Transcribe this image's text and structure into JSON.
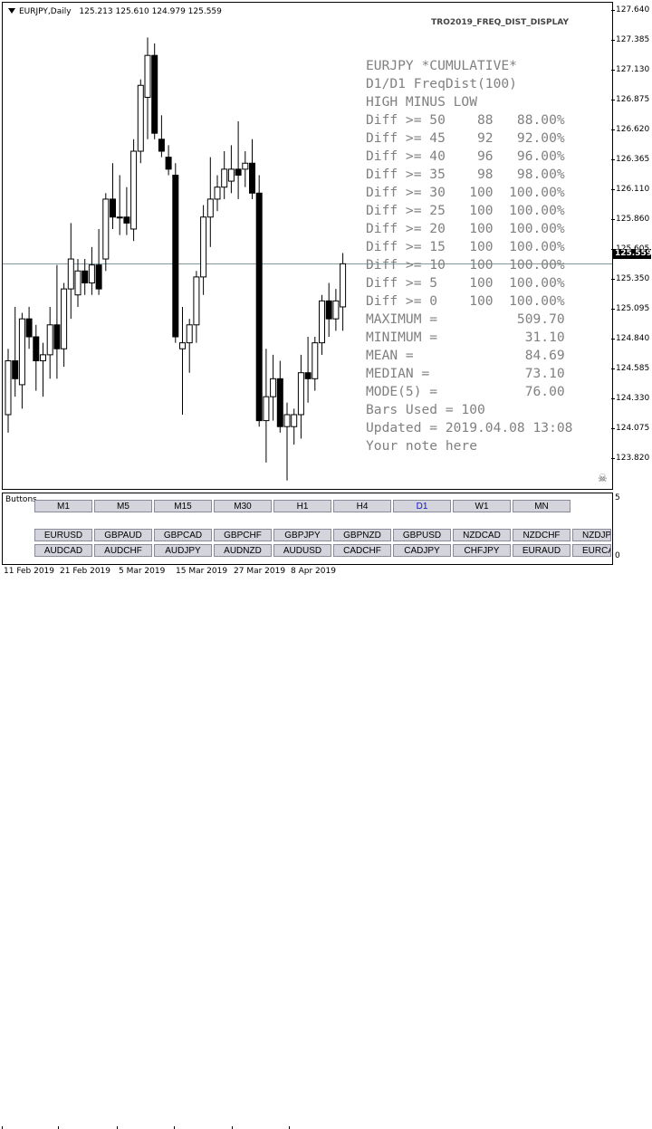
{
  "header": {
    "symbol": "EURJPY,Daily",
    "ohlc": "125.213 125.610 124.979 125.559",
    "indicator": "TRO2019_FREQ_DIST_DISPLAY"
  },
  "price_axis": {
    "ticks": [
      "127.640",
      "127.385",
      "127.130",
      "126.875",
      "126.620",
      "126.365",
      "126.110",
      "125.860",
      "125.605",
      "125.350",
      "125.095",
      "124.840",
      "124.585",
      "124.330",
      "124.075",
      "123.820"
    ],
    "current": "125.559"
  },
  "stats": {
    "lines": [
      "EURJPY *CUMULATIVE*",
      "D1/D1 FreqDist(100)",
      "HIGH MINUS LOW",
      "Diff >= 50    88   88.00%",
      "Diff >= 45    92   92.00%",
      "Diff >= 40    96   96.00%",
      "Diff >= 35    98   98.00%",
      "Diff >= 30   100  100.00%",
      "Diff >= 25   100  100.00%",
      "Diff >= 20   100  100.00%",
      "Diff >= 15   100  100.00%",
      "Diff >= 10   100  100.00%",
      "Diff >= 5    100  100.00%",
      "Diff >= 0    100  100.00%",
      "MAXIMUM =          509.70",
      "MINIMUM =           31.10",
      "MEAN =              84.69",
      "MEDIAN =            73.10",
      "MODE(5) =           76.00",
      "Bars Used = 100",
      "Updated = 2019.04.08 13:08",
      "Your note here"
    ]
  },
  "sub_window": {
    "label": "Buttons",
    "tick_top": "5",
    "tick_bottom": "0",
    "timeframes": [
      "M1",
      "M5",
      "M15",
      "M30",
      "H1",
      "H4",
      "D1",
      "W1",
      "MN"
    ],
    "active_timeframe": "D1",
    "pairs_row1": [
      "EURUSD",
      "GBPAUD",
      "GBPCAD",
      "GBPCHF",
      "GBPJPY",
      "GBPNZD",
      "GBPUSD",
      "NZDCAD",
      "NZDCHF",
      "NZDJPY"
    ],
    "pairs_row2": [
      "AUDCAD",
      "AUDCHF",
      "AUDJPY",
      "AUDNZD",
      "AUDUSD",
      "CADCHF",
      "CADJPY",
      "CHFJPY",
      "EURAUD",
      "EURCAD"
    ]
  },
  "time_axis": {
    "ticks": [
      "11 Feb 2019",
      "21 Feb 2019",
      "5 Mar 2019",
      "15 Mar 2019",
      "27 Mar 2019",
      "8 Apr 2019"
    ]
  },
  "colors": {
    "bull": "#ffffff",
    "bear": "#000000",
    "stats_text": "#808080",
    "active_button_text": "#1010d0"
  },
  "chart_data": {
    "type": "candlestick",
    "ylim": [
      123.68,
      127.74
    ],
    "candles": [
      {
        "o": 124.3,
        "h": 124.85,
        "l": 124.15,
        "c": 124.75
      },
      {
        "o": 124.75,
        "h": 125.2,
        "l": 124.45,
        "c": 124.6
      },
      {
        "o": 124.55,
        "h": 125.15,
        "l": 124.35,
        "c": 125.1
      },
      {
        "o": 125.1,
        "h": 125.2,
        "l": 124.85,
        "c": 124.95
      },
      {
        "o": 124.95,
        "h": 125.05,
        "l": 124.5,
        "c": 124.75
      },
      {
        "o": 124.75,
        "h": 124.9,
        "l": 124.45,
        "c": 124.8
      },
      {
        "o": 124.8,
        "h": 125.2,
        "l": 124.6,
        "c": 125.05
      },
      {
        "o": 125.05,
        "h": 125.55,
        "l": 124.6,
        "c": 124.85
      },
      {
        "o": 124.85,
        "h": 125.4,
        "l": 124.7,
        "c": 125.35
      },
      {
        "o": 125.35,
        "h": 125.9,
        "l": 125.1,
        "c": 125.6
      },
      {
        "o": 125.3,
        "h": 125.6,
        "l": 125.2,
        "c": 125.5
      },
      {
        "o": 125.5,
        "h": 125.6,
        "l": 125.3,
        "c": 125.4
      },
      {
        "o": 125.4,
        "h": 125.7,
        "l": 125.3,
        "c": 125.55
      },
      {
        "o": 125.55,
        "h": 125.85,
        "l": 125.3,
        "c": 125.35
      },
      {
        "o": 125.6,
        "h": 126.15,
        "l": 125.5,
        "c": 126.1
      },
      {
        "o": 126.1,
        "h": 126.4,
        "l": 125.85,
        "c": 125.95
      },
      {
        "o": 125.95,
        "h": 126.3,
        "l": 125.8,
        "c": 125.95
      },
      {
        "o": 125.95,
        "h": 126.2,
        "l": 125.8,
        "c": 125.9
      },
      {
        "o": 125.85,
        "h": 126.6,
        "l": 125.75,
        "c": 126.5
      },
      {
        "o": 126.5,
        "h": 127.1,
        "l": 126.4,
        "c": 127.05
      },
      {
        "o": 126.95,
        "h": 127.45,
        "l": 126.6,
        "c": 127.3
      },
      {
        "o": 127.3,
        "h": 127.4,
        "l": 126.6,
        "c": 126.65
      },
      {
        "o": 126.6,
        "h": 126.8,
        "l": 126.45,
        "c": 126.5
      },
      {
        "o": 126.45,
        "h": 126.55,
        "l": 126.3,
        "c": 126.35
      },
      {
        "o": 126.3,
        "h": 126.4,
        "l": 124.9,
        "c": 124.95
      },
      {
        "o": 124.85,
        "h": 125.2,
        "l": 124.3,
        "c": 124.9
      },
      {
        "o": 124.9,
        "h": 125.1,
        "l": 124.65,
        "c": 125.05
      },
      {
        "o": 125.05,
        "h": 125.5,
        "l": 124.9,
        "c": 125.45
      },
      {
        "o": 125.45,
        "h": 126.05,
        "l": 125.3,
        "c": 125.95
      },
      {
        "o": 125.95,
        "h": 126.45,
        "l": 125.7,
        "c": 126.1
      },
      {
        "o": 126.1,
        "h": 126.3,
        "l": 126.0,
        "c": 126.2
      },
      {
        "o": 126.2,
        "h": 126.5,
        "l": 126.1,
        "c": 126.35
      },
      {
        "o": 126.25,
        "h": 126.55,
        "l": 126.15,
        "c": 126.35
      },
      {
        "o": 126.35,
        "h": 126.75,
        "l": 126.1,
        "c": 126.3
      },
      {
        "o": 126.35,
        "h": 126.5,
        "l": 126.2,
        "c": 126.4
      },
      {
        "o": 126.4,
        "h": 126.6,
        "l": 126.1,
        "c": 126.15
      },
      {
        "o": 126.15,
        "h": 126.3,
        "l": 124.2,
        "c": 124.25
      },
      {
        "o": 124.25,
        "h": 124.85,
        "l": 123.9,
        "c": 124.45
      },
      {
        "o": 124.45,
        "h": 124.8,
        "l": 124.25,
        "c": 124.6
      },
      {
        "o": 124.6,
        "h": 124.75,
        "l": 124.15,
        "c": 124.2
      },
      {
        "o": 124.2,
        "h": 124.4,
        "l": 123.75,
        "c": 124.3
      },
      {
        "o": 124.2,
        "h": 124.35,
        "l": 124.05,
        "c": 124.3
      },
      {
        "o": 124.3,
        "h": 124.8,
        "l": 124.1,
        "c": 124.65
      },
      {
        "o": 124.65,
        "h": 124.95,
        "l": 124.4,
        "c": 124.6
      },
      {
        "o": 124.6,
        "h": 124.95,
        "l": 124.5,
        "c": 124.9
      },
      {
        "o": 124.9,
        "h": 125.3,
        "l": 124.8,
        "c": 125.25
      },
      {
        "o": 125.25,
        "h": 125.4,
        "l": 124.95,
        "c": 125.1
      },
      {
        "o": 125.1,
        "h": 125.35,
        "l": 125.0,
        "c": 125.25
      },
      {
        "o": 125.2,
        "h": 125.65,
        "l": 125.0,
        "c": 125.56
      }
    ]
  }
}
